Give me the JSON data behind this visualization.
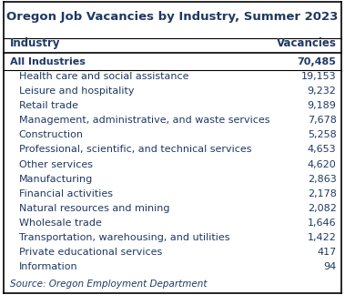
{
  "title": "Oregon Job Vacancies by Industry, Summer 2023",
  "col1_header": "Industry",
  "col2_header": "Vacancies",
  "rows": [
    [
      "All Industries",
      "70,485",
      true
    ],
    [
      "Health care and social assistance",
      "19,153",
      false
    ],
    [
      "Leisure and hospitality",
      "9,232",
      false
    ],
    [
      "Retail trade",
      "9,189",
      false
    ],
    [
      "Management, administrative, and waste services",
      "7,678",
      false
    ],
    [
      "Construction",
      "5,258",
      false
    ],
    [
      "Professional, scientific, and technical services",
      "4,653",
      false
    ],
    [
      "Other services",
      "4,620",
      false
    ],
    [
      "Manufacturing",
      "2,863",
      false
    ],
    [
      "Financial activities",
      "2,178",
      false
    ],
    [
      "Natural resources and mining",
      "2,082",
      false
    ],
    [
      "Wholesale trade",
      "1,646",
      false
    ],
    [
      "Transportation, warehousing, and utilities",
      "1,422",
      false
    ],
    [
      "Private educational services",
      "417",
      false
    ],
    [
      "Information",
      "94",
      false
    ]
  ],
  "source": "Source: Oregon Employment Department",
  "title_color": "#1F3864",
  "header_color": "#1F3864",
  "data_color": "#1F3864",
  "bold_row_color": "#1F3864",
  "source_color": "#1F3864",
  "bg_color": "#FFFFFF",
  "border_color": "#000000",
  "title_fontsize": 9.5,
  "header_fontsize": 8.5,
  "data_fontsize": 8.0,
  "source_fontsize": 7.5
}
